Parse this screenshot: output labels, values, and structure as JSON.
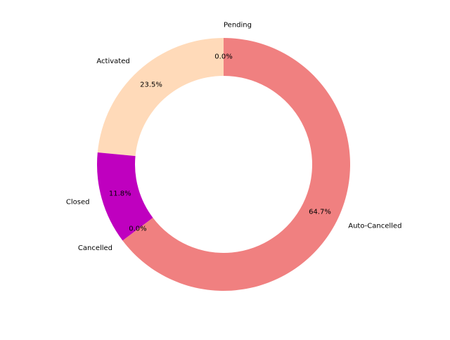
{
  "chart_data": {
    "type": "pie",
    "variant": "donut",
    "title": "",
    "start_angle_deg": 90,
    "direction": "counterclockwise",
    "labels": [
      "Pending",
      "Activated",
      "Closed",
      "Cancelled",
      "Auto-Cancelled"
    ],
    "values": [
      0.0,
      23.5,
      11.8,
      0.0,
      64.7
    ],
    "value_labels": [
      "0.0%",
      "23.5%",
      "11.8%",
      "0.0%",
      "64.7%"
    ],
    "colors": [
      "#0000ff",
      "#ffdab9",
      "#bf00bf",
      "#ff69b4",
      "#f08080"
    ],
    "legend": "none"
  }
}
